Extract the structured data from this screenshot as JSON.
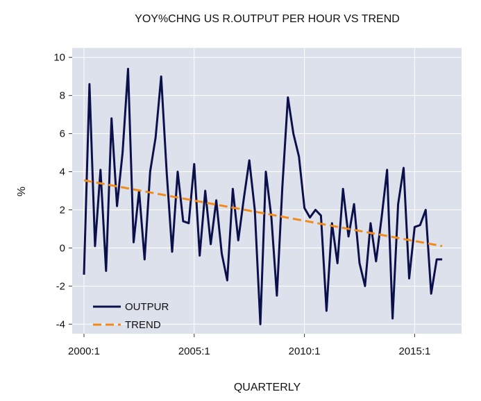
{
  "chart_data": {
    "type": "line",
    "title": "YOY%CHNG US R.OUTPUT PER HOUR VS TREND",
    "xlabel": "QUARTERLY",
    "ylabel": "%",
    "ylim": [
      -4.5,
      10.5
    ],
    "yticks": [
      -4,
      -2,
      0,
      2,
      4,
      6,
      8,
      10
    ],
    "xtick_labels": [
      "2000:1",
      "2005:1",
      "2010:1",
      "2015:1"
    ],
    "xtick_quarters": [
      "2000:1",
      "2005:1",
      "2010:1",
      "2015:1"
    ],
    "x_start": "2000:1",
    "x_end": "2016:2",
    "grid": true,
    "legend_position": "bottom-left",
    "background_color": "#dde1ec",
    "series": [
      {
        "name": "OUTPUR",
        "color": "#0b0f4a",
        "style": "solid",
        "values": [
          -1.4,
          8.6,
          0.1,
          4.1,
          -1.2,
          6.8,
          2.2,
          5.0,
          9.4,
          0.3,
          3.0,
          -0.6,
          4.0,
          5.8,
          9.0,
          4.0,
          -0.2,
          4.0,
          1.4,
          1.3,
          4.4,
          -0.4,
          3.0,
          0.2,
          2.5,
          -0.3,
          -1.7,
          3.1,
          0.4,
          2.6,
          4.6,
          2.0,
          -4.0,
          4.0,
          1.6,
          -2.5,
          3.2,
          7.9,
          6.0,
          4.8,
          2.1,
          1.6,
          2.0,
          1.7,
          -3.3,
          1.3,
          -0.8,
          3.1,
          0.6,
          2.3,
          -0.8,
          -2.0,
          1.3,
          -0.7,
          1.6,
          4.1,
          -3.7,
          2.3,
          4.2,
          -1.6,
          1.1,
          1.2,
          2.0,
          -2.4,
          -0.6,
          -0.6
        ]
      },
      {
        "name": "TREND",
        "color": "#f08a1c",
        "style": "dashed",
        "values": [
          3.55,
          0.1
        ]
      }
    ]
  }
}
